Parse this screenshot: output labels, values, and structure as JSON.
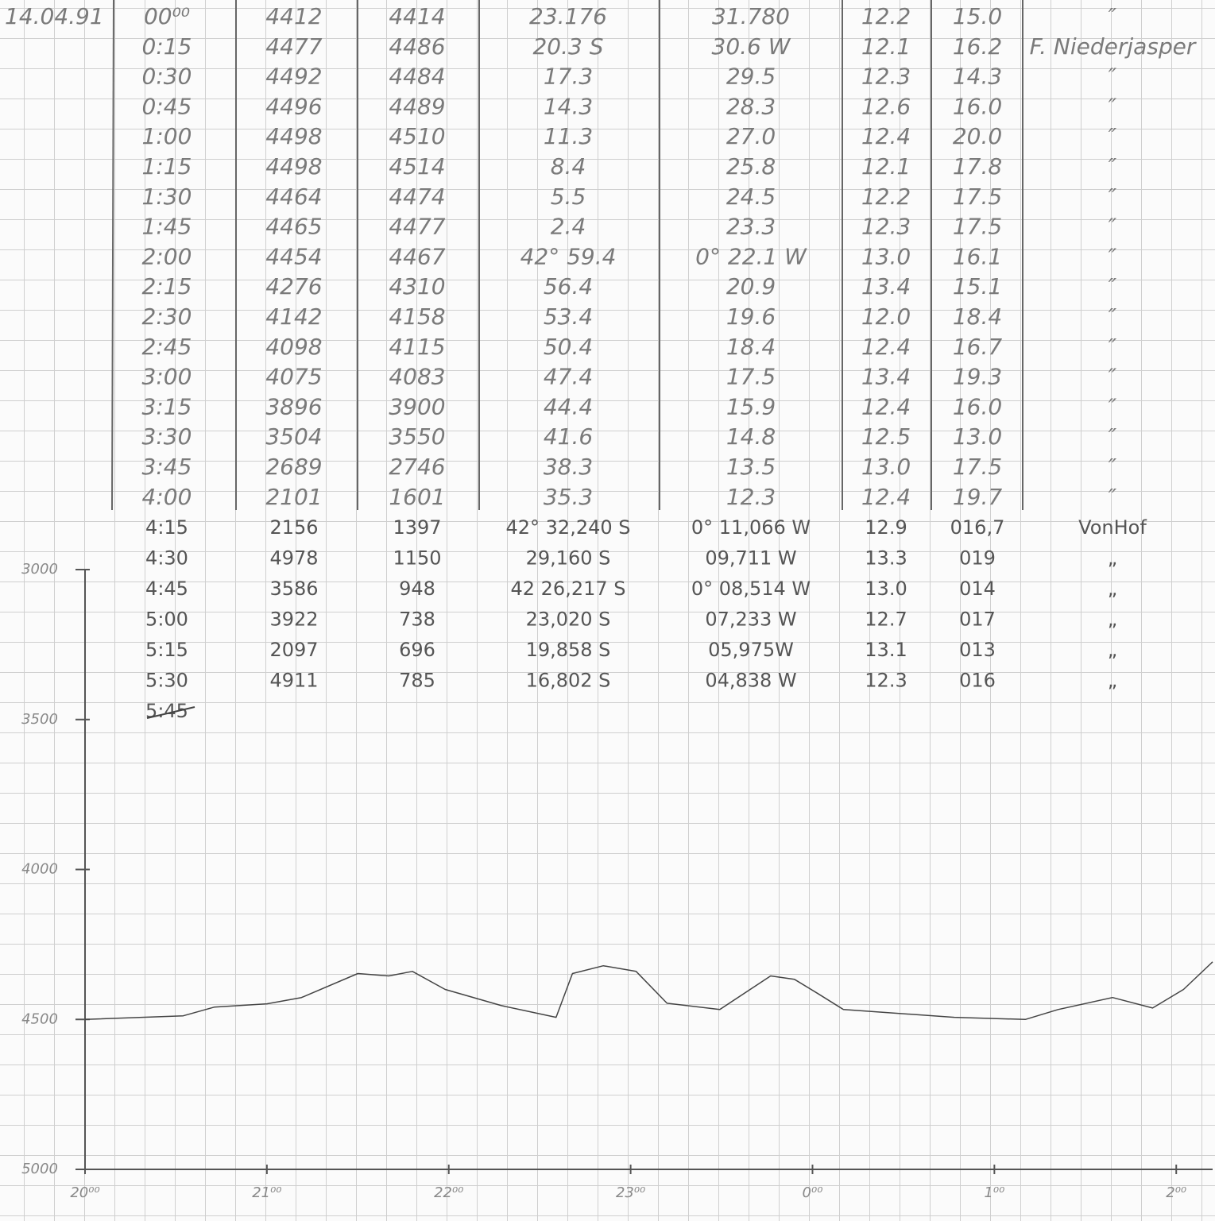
{
  "log": {
    "date": "14.04.91",
    "rows": [
      [
        "00⁰⁰",
        "4412",
        "4414",
        "23.176",
        "31.780",
        "12.2",
        "15.0",
        "″"
      ],
      [
        "0:15",
        "4477",
        "4486",
        "20.3 S",
        "30.6 W",
        "12.1",
        "16.2",
        "F. Niederjasper"
      ],
      [
        "0:30",
        "4492",
        "4484",
        "17.3",
        "29.5",
        "12.3",
        "14.3",
        "″"
      ],
      [
        "0:45",
        "4496",
        "4489",
        "14.3",
        "28.3",
        "12.6",
        "16.0",
        "″"
      ],
      [
        "1:00",
        "4498",
        "4510",
        "11.3",
        "27.0",
        "12.4",
        "20.0",
        "″"
      ],
      [
        "1:15",
        "4498",
        "4514",
        "8.4",
        "25.8",
        "12.1",
        "17.8",
        "″"
      ],
      [
        "1:30",
        "4464",
        "4474",
        "5.5",
        "24.5",
        "12.2",
        "17.5",
        "″"
      ],
      [
        "1:45",
        "4465",
        "4477",
        "2.4",
        "23.3",
        "12.3",
        "17.5",
        "″"
      ],
      [
        "2:00",
        "4454",
        "4467",
        "42° 59.4",
        "0° 22.1 W",
        "13.0",
        "16.1",
        "″"
      ],
      [
        "2:15",
        "4276",
        "4310",
        "56.4",
        "20.9",
        "13.4",
        "15.1",
        "″"
      ],
      [
        "2:30",
        "4142",
        "4158",
        "53.4",
        "19.6",
        "12.0",
        "18.4",
        "″"
      ],
      [
        "2:45",
        "4098",
        "4115",
        "50.4",
        "18.4",
        "12.4",
        "16.7",
        "″"
      ],
      [
        "3:00",
        "4075",
        "4083",
        "47.4",
        "17.5",
        "13.4",
        "19.3",
        "″"
      ],
      [
        "3:15",
        "3896",
        "3900",
        "44.4",
        "15.9",
        "12.4",
        "16.0",
        "″"
      ],
      [
        "3:30",
        "3504",
        "3550",
        "41.6",
        "14.8",
        "12.5",
        "13.0",
        "″"
      ],
      [
        "3:45",
        "2689",
        "2746",
        "38.3",
        "13.5",
        "13.0",
        "17.5",
        "″"
      ],
      [
        "4:00",
        "2101",
        "1601",
        "35.3",
        "12.3",
        "12.4",
        "19.7",
        "″"
      ],
      [
        "4:15",
        "2156",
        "1397",
        "42° 32,240 S",
        "0° 11,066 W",
        "12.9",
        "016,7",
        "VonHof"
      ],
      [
        "4:30",
        "4978",
        "1150",
        "29,160 S",
        "09,711 W",
        "13.3",
        "019",
        "„"
      ],
      [
        "4:45",
        "3586",
        "948",
        "42 26,217 S",
        "0° 08,514 W",
        "13.0",
        "014",
        "„"
      ],
      [
        "5:00",
        "3922",
        "738",
        "23,020 S",
        "07,233 W",
        "12.7",
        "017",
        "„"
      ],
      [
        "5:15",
        "2097",
        "696",
        "19,858 S",
        "05,975W",
        "13.1",
        "013",
        "„"
      ],
      [
        "5:30",
        "4911",
        "785",
        "16,802 S",
        "04,838 W",
        "12.3",
        "016",
        "„"
      ],
      [
        "5:45"
      ]
    ]
  },
  "profile": {
    "xlim": [
      20,
      26.2
    ],
    "ylim": [
      3000,
      5000
    ],
    "xticks": [
      {
        "value": 20,
        "label": "20⁰⁰"
      },
      {
        "value": 21,
        "label": "21⁰⁰"
      },
      {
        "value": 22,
        "label": "22⁰⁰"
      },
      {
        "value": 23,
        "label": "23⁰⁰"
      },
      {
        "value": 24,
        "label": "0⁰⁰"
      },
      {
        "value": 25,
        "label": "1⁰⁰"
      },
      {
        "value": 26,
        "label": "2⁰⁰"
      }
    ],
    "yticks": [
      3000,
      3500,
      4000,
      4500,
      5000
    ],
    "x": [
      20.0,
      20.54,
      20.71,
      21.0,
      21.19,
      21.5,
      21.67,
      21.8,
      21.98,
      22.29,
      22.59,
      22.68,
      22.85,
      23.03,
      23.2,
      23.49,
      23.77,
      23.9,
      24.03,
      24.17,
      24.78,
      25.17,
      25.35,
      25.65,
      25.87,
      26.04,
      26.2
    ],
    "depth": [
      4500,
      4488,
      4459,
      4448,
      4427,
      4347,
      4355,
      4340,
      4400,
      4454,
      4493,
      4347,
      4321,
      4340,
      4446,
      4467,
      4355,
      4366,
      4414,
      4467,
      4493,
      4500,
      4467,
      4427,
      4462,
      4400,
      4308
    ]
  }
}
